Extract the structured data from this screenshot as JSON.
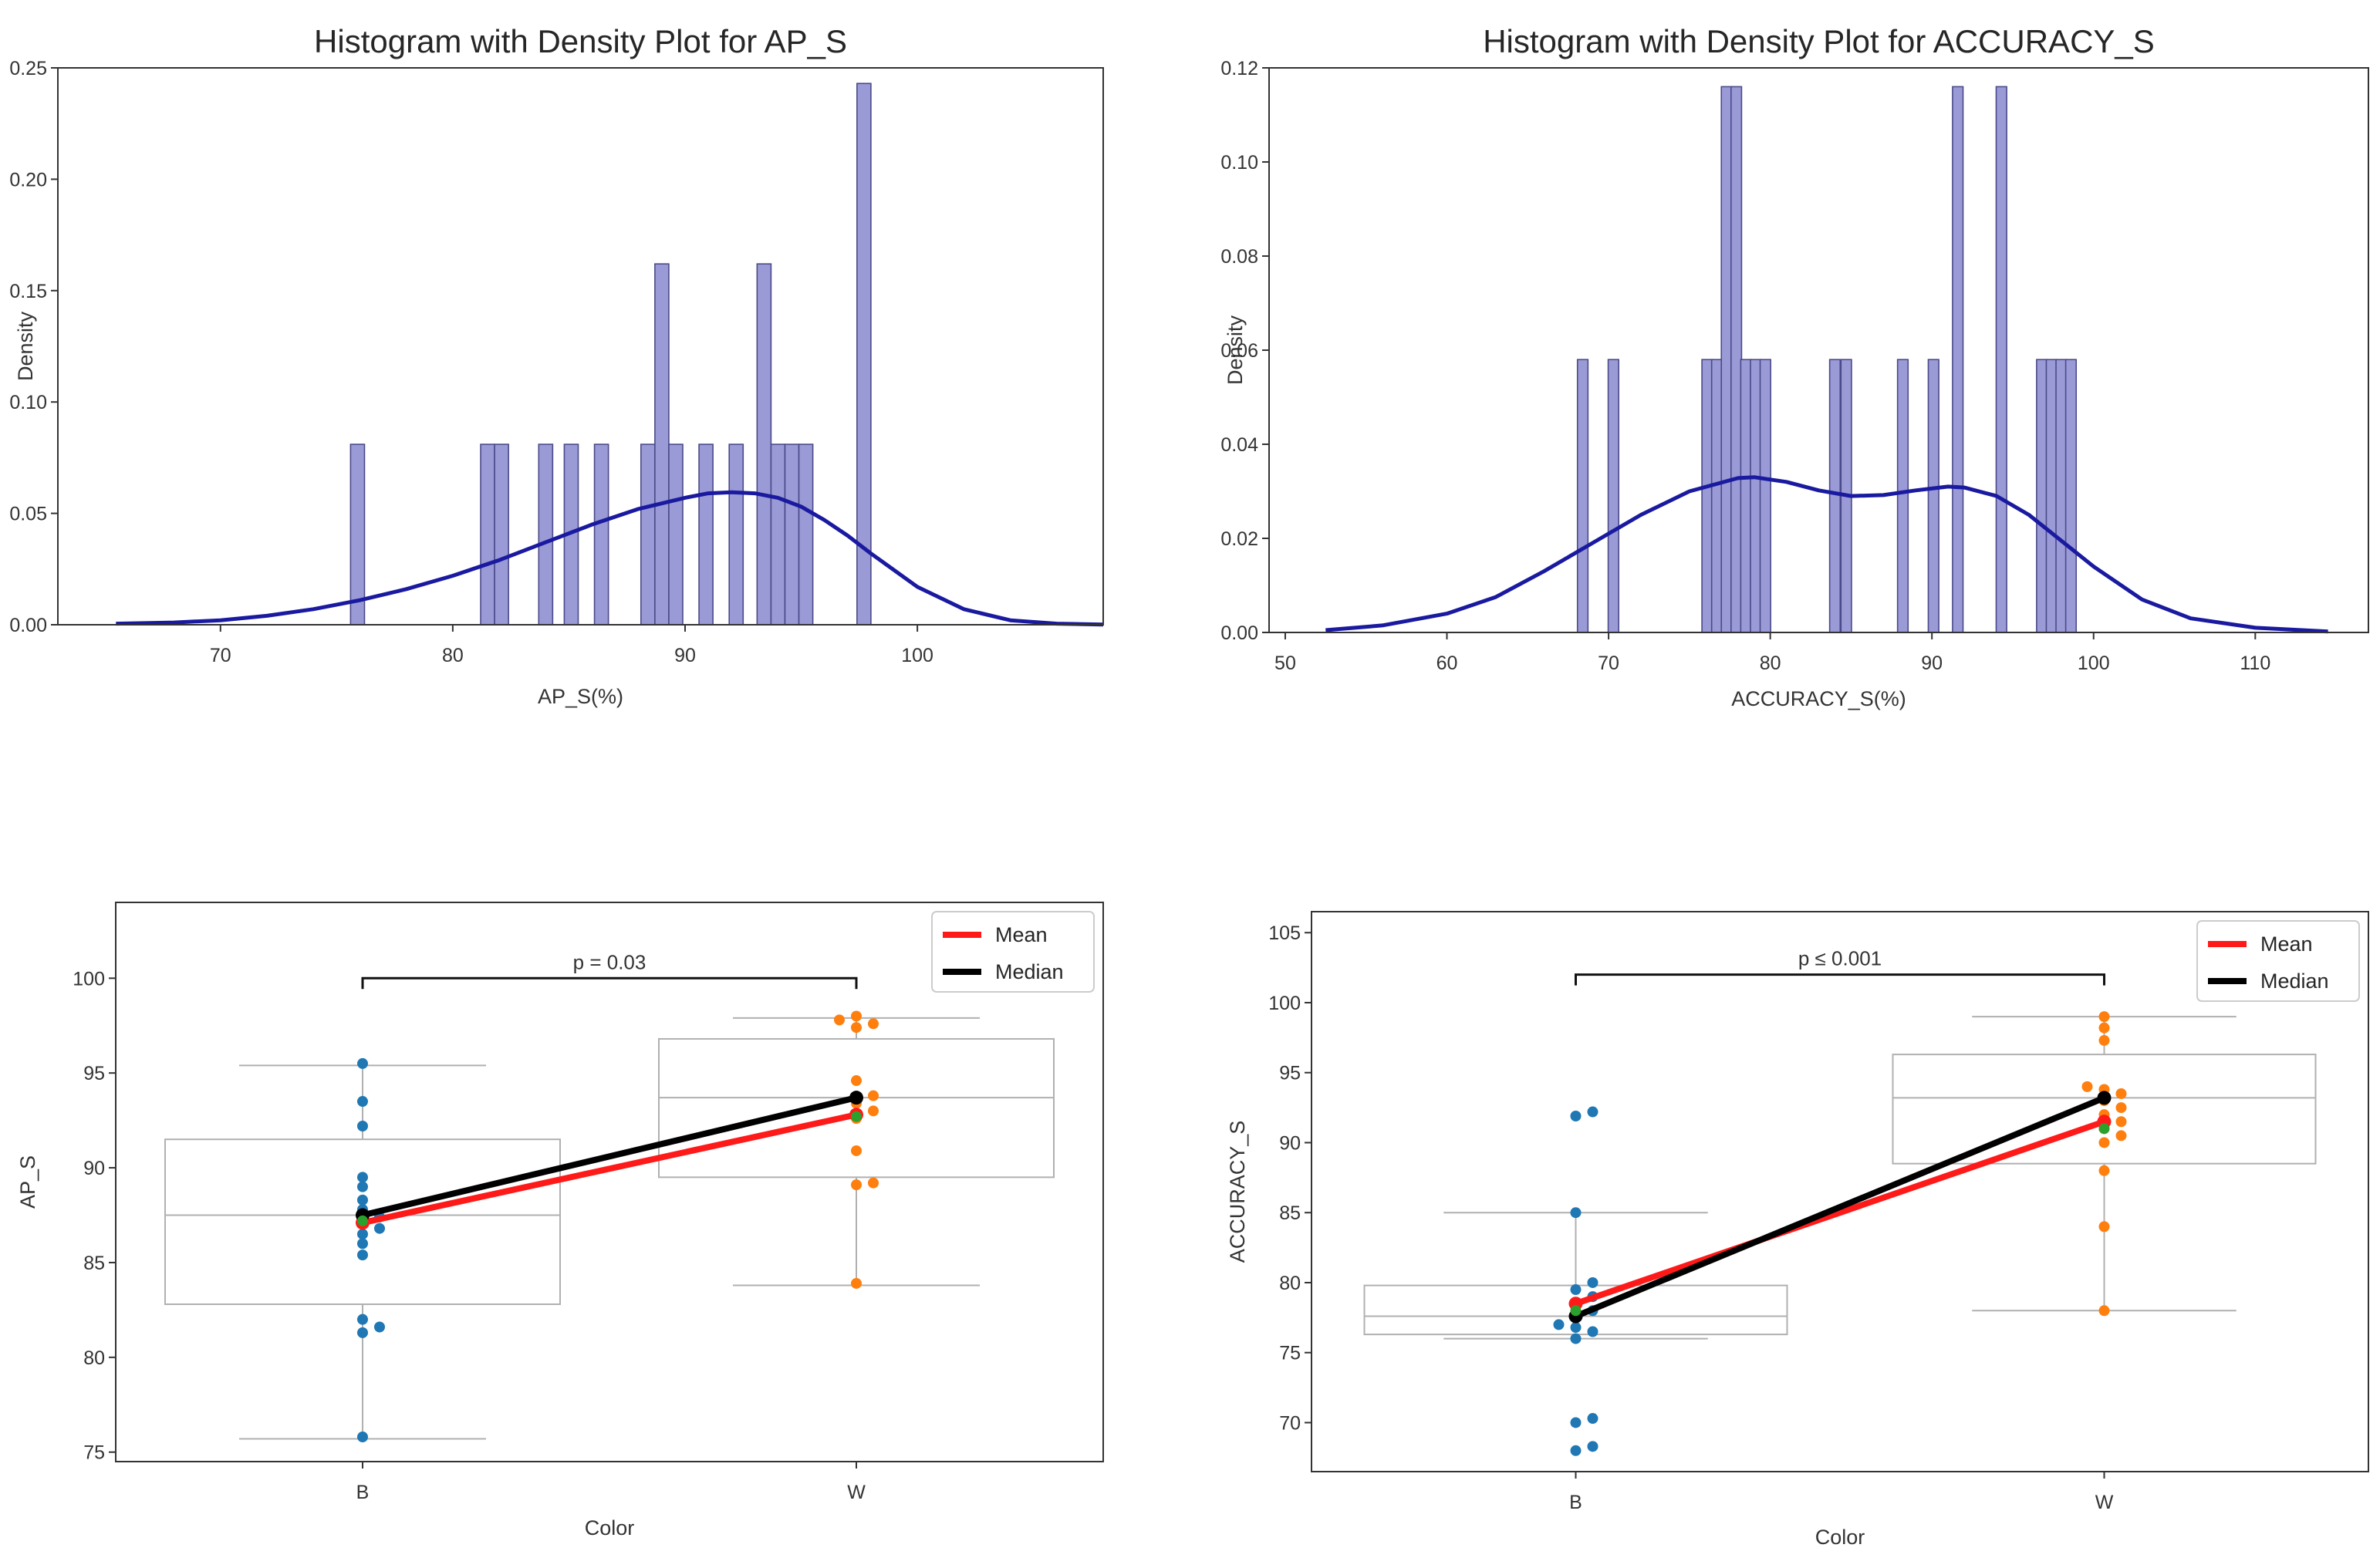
{
  "colors": {
    "hist_fill": "#9a9ad6",
    "hist_edge": "#4a4a8a",
    "kde": "#1a1aa0",
    "group_b": "#1f77b4",
    "group_w": "#ff7f0e",
    "mean_line": "#ff1a1a",
    "median_line": "#000000",
    "group_mean_marker": "#2ca02c",
    "box_edge": "#b0b0b0",
    "axes": "#333333"
  },
  "chart_data": [
    {
      "id": "hist_ap",
      "type": "bar",
      "subtype": "histogram_with_kde",
      "title": "Histogram with Density Plot for AP_S",
      "xlabel": "AP_S(%)",
      "ylabel": "Density",
      "xlim": [
        63,
        108
      ],
      "ylim": [
        0,
        0.25
      ],
      "xticks": [
        70,
        80,
        90,
        100
      ],
      "yticks": [
        0.0,
        0.05,
        0.1,
        0.15,
        0.2,
        0.25
      ],
      "xtick_labels": [
        "70",
        "80",
        "90",
        "100"
      ],
      "ytick_labels": [
        "0.00",
        "0.05",
        "0.10",
        "0.15",
        "0.20",
        "0.25"
      ],
      "bin_width": 0.6,
      "bins": [
        {
          "x": 75.9,
          "density": 0.081
        },
        {
          "x": 81.5,
          "density": 0.081
        },
        {
          "x": 82.1,
          "density": 0.081
        },
        {
          "x": 84.0,
          "density": 0.081
        },
        {
          "x": 85.1,
          "density": 0.081
        },
        {
          "x": 86.4,
          "density": 0.081
        },
        {
          "x": 88.4,
          "density": 0.081
        },
        {
          "x": 89.0,
          "density": 0.162
        },
        {
          "x": 89.6,
          "density": 0.081
        },
        {
          "x": 90.9,
          "density": 0.081
        },
        {
          "x": 92.2,
          "density": 0.081
        },
        {
          "x": 93.4,
          "density": 0.162
        },
        {
          "x": 94.0,
          "density": 0.081
        },
        {
          "x": 94.6,
          "density": 0.081
        },
        {
          "x": 95.2,
          "density": 0.081
        },
        {
          "x": 97.7,
          "density": 0.243
        }
      ],
      "kde": {
        "x": [
          65.5,
          68,
          70,
          72,
          74,
          76,
          78,
          80,
          82,
          84,
          86,
          88,
          90,
          91,
          92,
          93,
          94,
          95,
          96,
          97,
          98,
          100,
          102,
          104,
          106,
          108
        ],
        "y": [
          0.0005,
          0.001,
          0.002,
          0.004,
          0.007,
          0.011,
          0.016,
          0.022,
          0.029,
          0.037,
          0.045,
          0.052,
          0.057,
          0.059,
          0.0595,
          0.059,
          0.057,
          0.053,
          0.047,
          0.04,
          0.032,
          0.017,
          0.007,
          0.002,
          0.0005,
          0.0001
        ]
      }
    },
    {
      "id": "hist_acc",
      "type": "bar",
      "subtype": "histogram_with_kde",
      "title": "Histogram with Density Plot for ACCURACY_S",
      "xlabel": "ACCURACY_S(%)",
      "ylabel": "Density",
      "xlim": [
        49,
        117
      ],
      "ylim": [
        0,
        0.12
      ],
      "xticks": [
        50,
        60,
        70,
        80,
        90,
        100,
        110
      ],
      "yticks": [
        0.0,
        0.02,
        0.04,
        0.06,
        0.08,
        0.1,
        0.12
      ],
      "xtick_labels": [
        "50",
        "60",
        "70",
        "80",
        "90",
        "100",
        "110"
      ],
      "ytick_labels": [
        "0.00",
        "0.02",
        "0.04",
        "0.06",
        "0.08",
        "0.10",
        "0.12"
      ],
      "bin_width": 0.65,
      "bins": [
        {
          "x": 68.4,
          "density": 0.058
        },
        {
          "x": 70.3,
          "density": 0.058
        },
        {
          "x": 76.1,
          "density": 0.058
        },
        {
          "x": 76.7,
          "density": 0.058
        },
        {
          "x": 77.3,
          "density": 0.116
        },
        {
          "x": 77.9,
          "density": 0.116
        },
        {
          "x": 78.5,
          "density": 0.058
        },
        {
          "x": 79.1,
          "density": 0.058
        },
        {
          "x": 79.7,
          "density": 0.058
        },
        {
          "x": 84.0,
          "density": 0.058
        },
        {
          "x": 84.7,
          "density": 0.058
        },
        {
          "x": 88.2,
          "density": 0.058
        },
        {
          "x": 90.1,
          "density": 0.058
        },
        {
          "x": 91.6,
          "density": 0.116
        },
        {
          "x": 94.3,
          "density": 0.116
        },
        {
          "x": 96.8,
          "density": 0.058
        },
        {
          "x": 97.4,
          "density": 0.058
        },
        {
          "x": 98.0,
          "density": 0.058
        },
        {
          "x": 98.6,
          "density": 0.058
        }
      ],
      "kde": {
        "x": [
          52.5,
          56,
          60,
          63,
          66,
          69,
          72,
          75,
          78,
          79,
          81,
          83,
          85,
          87,
          89,
          91,
          92,
          94,
          96,
          98,
          100,
          103,
          106,
          110,
          114.5
        ],
        "y": [
          0.0005,
          0.0015,
          0.004,
          0.0075,
          0.013,
          0.019,
          0.025,
          0.03,
          0.0328,
          0.033,
          0.032,
          0.0302,
          0.029,
          0.0292,
          0.0302,
          0.031,
          0.0308,
          0.029,
          0.025,
          0.0195,
          0.014,
          0.007,
          0.003,
          0.001,
          0.0002
        ]
      }
    },
    {
      "id": "box_ap",
      "type": "scatter",
      "subtype": "box_swarm_with_lines",
      "title": "",
      "xlabel": "Color",
      "ylabel": "AP_S",
      "categories": [
        "B",
        "W"
      ],
      "ylim": [
        74.5,
        104
      ],
      "yticks": [
        75,
        80,
        85,
        90,
        95,
        100
      ],
      "ytick_labels": [
        "75",
        "80",
        "85",
        "90",
        "95",
        "100"
      ],
      "boxes": [
        {
          "category": "B",
          "q1": 82.8,
          "median": 87.5,
          "q3": 91.5,
          "whisker_low": 75.7,
          "whisker_high": 95.4
        },
        {
          "category": "W",
          "q1": 89.5,
          "median": 93.7,
          "q3": 96.8,
          "whisker_low": 83.8,
          "whisker_high": 97.9
        }
      ],
      "points": [
        {
          "category": "B",
          "values": [
            95.5,
            93.5,
            92.2,
            89.5,
            89.0,
            88.3,
            87.8,
            87.4,
            87.1,
            86.8,
            86.5,
            86.0,
            85.4,
            82.0,
            81.6,
            81.3,
            75.8
          ]
        },
        {
          "category": "W",
          "values": [
            98.0,
            97.8,
            97.6,
            97.4,
            94.6,
            93.8,
            93.4,
            93.0,
            92.6,
            90.9,
            89.2,
            89.1,
            83.9
          ]
        }
      ],
      "series": [
        {
          "name": "Mean",
          "values": [
            87.1,
            92.8
          ]
        },
        {
          "name": "Median",
          "values": [
            87.5,
            93.7
          ]
        }
      ],
      "group_markers": [
        87.2,
        92.7
      ],
      "significance": {
        "label": "p = 0.03",
        "y": 100.0
      },
      "legend": [
        "Mean",
        "Median"
      ],
      "legend_position": "top-right"
    },
    {
      "id": "box_acc",
      "type": "scatter",
      "subtype": "box_swarm_with_lines",
      "title": "",
      "xlabel": "Color",
      "ylabel": "ACCURACY_S",
      "categories": [
        "B",
        "W"
      ],
      "ylim": [
        66.5,
        106.5
      ],
      "yticks": [
        70,
        75,
        80,
        85,
        90,
        95,
        100,
        105
      ],
      "ytick_labels": [
        "70",
        "75",
        "80",
        "85",
        "90",
        "95",
        "100",
        "105"
      ],
      "boxes": [
        {
          "category": "B",
          "q1": 76.3,
          "median": 77.6,
          "q3": 79.8,
          "whisker_low": 76.0,
          "whisker_high": 85.0
        },
        {
          "category": "W",
          "q1": 88.5,
          "median": 93.2,
          "q3": 96.3,
          "whisker_low": 78.0,
          "whisker_high": 99.0
        }
      ],
      "points": [
        {
          "category": "B",
          "values": [
            92.2,
            91.9,
            85.0,
            80.0,
            79.5,
            79.0,
            78.5,
            78.0,
            77.5,
            77.0,
            76.8,
            76.5,
            76.0,
            70.3,
            70.0,
            68.3,
            68.0
          ]
        },
        {
          "category": "W",
          "values": [
            99.0,
            98.2,
            97.3,
            94.0,
            93.8,
            93.5,
            93.0,
            92.5,
            92.0,
            91.5,
            91.0,
            90.5,
            90.0,
            88.0,
            84.0,
            78.0
          ]
        }
      ],
      "series": [
        {
          "name": "Mean",
          "values": [
            78.5,
            91.5
          ]
        },
        {
          "name": "Median",
          "values": [
            77.6,
            93.2
          ]
        }
      ],
      "group_markers": [
        78.0,
        91.0
      ],
      "significance": {
        "label": "p ≤ 0.001",
        "y": 102.0
      },
      "legend": [
        "Mean",
        "Median"
      ],
      "legend_position": "top-right"
    }
  ]
}
